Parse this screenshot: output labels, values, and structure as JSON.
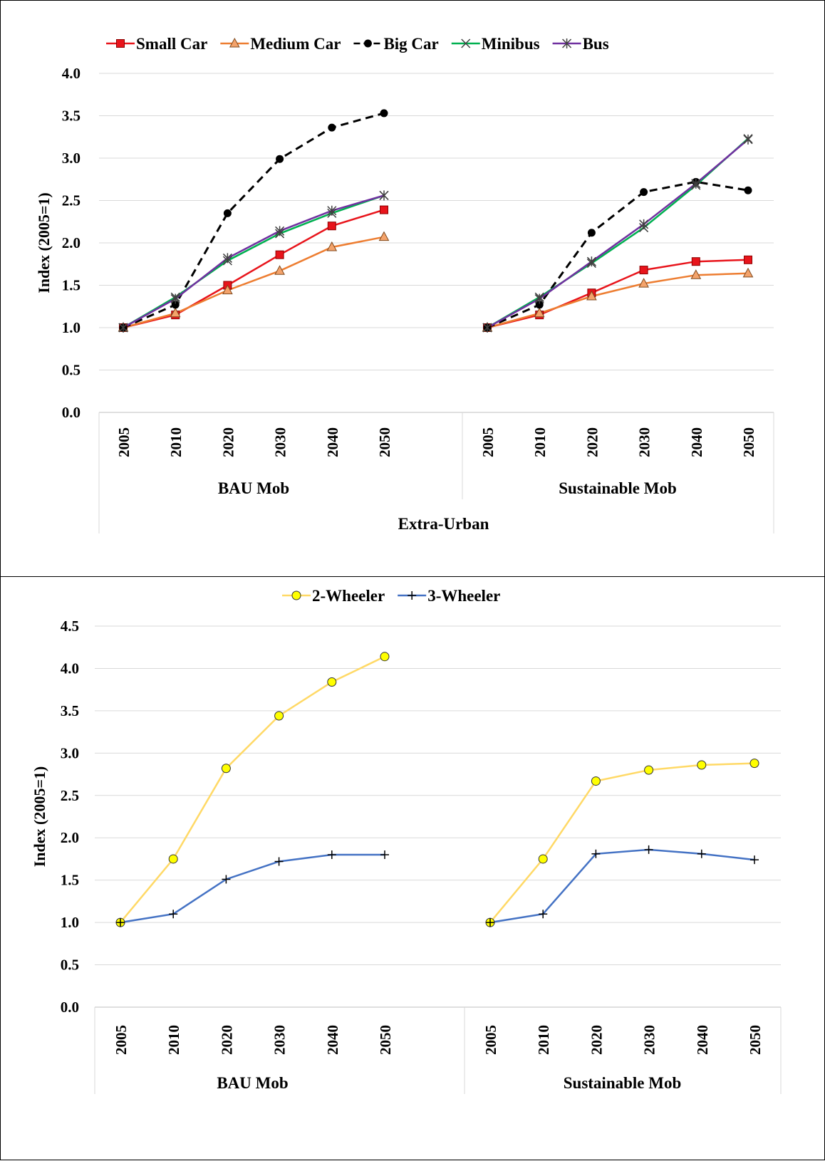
{
  "chart_data": [
    {
      "type": "line",
      "title": "",
      "ylabel": "Index (2005=1)",
      "ylim": [
        0,
        4
      ],
      "ytick_step": 0.5,
      "x": [
        "2005",
        "2010",
        "2020",
        "2030",
        "2040",
        "2050"
      ],
      "groups": [
        "BAU Mob",
        "Sustainable Mob"
      ],
      "outer_group": "Extra-Urban",
      "legend": "top",
      "grid": true,
      "series": [
        {
          "name": "Small Car",
          "color": "#e8141b",
          "marker": "square",
          "dash": false,
          "values": [
            [
              1.0,
              1.15,
              1.5,
              1.86,
              2.2,
              2.39
            ],
            [
              1.0,
              1.15,
              1.41,
              1.68,
              1.78,
              1.8
            ]
          ]
        },
        {
          "name": "Medium Car",
          "color": "#ed7d31",
          "marker": "triangle",
          "dash": false,
          "values": [
            [
              1.0,
              1.17,
              1.44,
              1.67,
              1.95,
              2.07
            ],
            [
              1.0,
              1.17,
              1.37,
              1.52,
              1.62,
              1.64
            ]
          ]
        },
        {
          "name": "Big Car",
          "color": "#000000",
          "marker": "circle",
          "dash": true,
          "values": [
            [
              1.0,
              1.27,
              2.35,
              2.99,
              3.36,
              3.53
            ],
            [
              1.0,
              1.27,
              2.12,
              2.6,
              2.72,
              2.62
            ]
          ]
        },
        {
          "name": "Minibus",
          "color": "#00b050",
          "marker": "x",
          "dash": false,
          "values": [
            [
              1.0,
              1.36,
              1.79,
              2.11,
              2.35,
              2.56
            ],
            [
              1.0,
              1.36,
              1.76,
              2.18,
              2.68,
              3.23
            ]
          ]
        },
        {
          "name": "Bus",
          "color": "#7030a0",
          "marker": "asterisk",
          "dash": false,
          "values": [
            [
              1.0,
              1.34,
              1.82,
              2.14,
              2.38,
              2.56
            ],
            [
              1.0,
              1.34,
              1.78,
              2.22,
              2.7,
              3.22
            ]
          ]
        }
      ]
    },
    {
      "type": "line",
      "title": "",
      "ylabel": "Index (2005=1)",
      "ylim": [
        0,
        4.5
      ],
      "ytick_step": 0.5,
      "x": [
        "2005",
        "2010",
        "2020",
        "2030",
        "2040",
        "2050"
      ],
      "groups": [
        "BAU Mob",
        "Sustainable Mob"
      ],
      "outer_group": "",
      "legend": "top",
      "grid": true,
      "series": [
        {
          "name": "2-Wheeler",
          "color": "#ffd966",
          "marker": "circle-yellow",
          "dash": false,
          "values": [
            [
              1.0,
              1.75,
              2.82,
              3.44,
              3.84,
              4.14
            ],
            [
              1.0,
              1.75,
              2.67,
              2.8,
              2.86,
              2.88
            ]
          ]
        },
        {
          "name": "3-Wheeler",
          "color": "#4472c4",
          "marker": "plus",
          "dash": false,
          "values": [
            [
              1.0,
              1.1,
              1.51,
              1.72,
              1.8,
              1.8
            ],
            [
              1.0,
              1.1,
              1.81,
              1.86,
              1.81,
              1.74
            ]
          ]
        }
      ]
    }
  ]
}
